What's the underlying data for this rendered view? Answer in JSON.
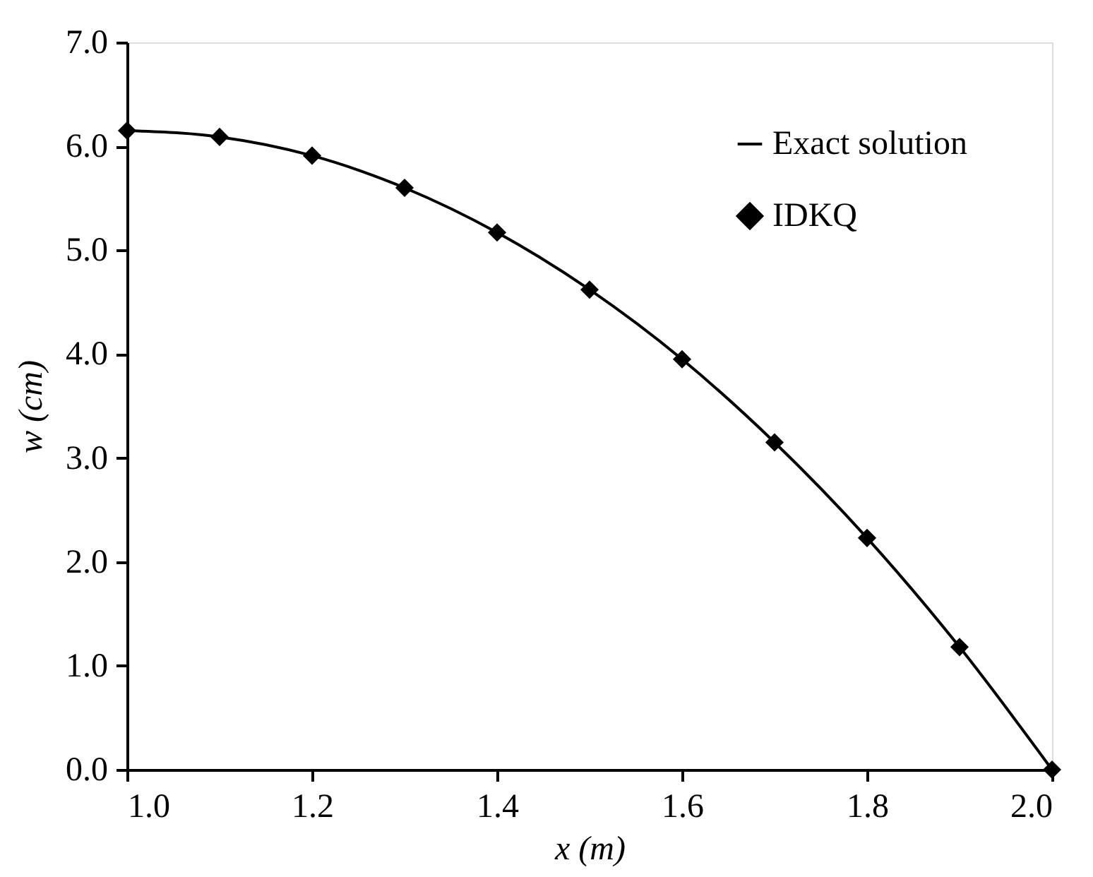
{
  "chart_data": {
    "type": "line",
    "xlabel": "x (m)",
    "ylabel": "w (cm)",
    "xlim": [
      1.0,
      2.0
    ],
    "xticks": [
      {
        "value": 1.0,
        "label": "1.0"
      },
      1.2,
      1.4,
      1.6,
      1.8,
      {
        "value": 2.0,
        "label": "2.0"
      }
    ],
    "ylim": [
      0,
      7
    ],
    "yticks": [
      {
        "value": 0,
        "label": "0.0"
      },
      {
        "value": 1,
        "label": "1.0"
      },
      {
        "value": 2,
        "label": "2.0"
      },
      {
        "value": 3,
        "label": "3.0"
      },
      {
        "value": 4,
        "label": "4.0"
      },
      {
        "value": 5,
        "label": "5.0"
      },
      {
        "value": 6,
        "label": "6.0"
      },
      {
        "value": 7,
        "label": "7.0"
      }
    ],
    "grid": false,
    "legend": "top right",
    "series": [
      {
        "name": "Exact solution",
        "color": "#000000",
        "marker": "none",
        "line_style": "solid",
        "x": [
          1.0,
          1.1,
          1.2,
          1.3,
          1.4,
          1.5,
          1.6,
          1.7,
          1.8,
          1.9,
          2.0
        ],
        "values": [
          6.15,
          6.09,
          5.91,
          5.6,
          5.17,
          4.62,
          3.95,
          3.15,
          2.23,
          1.18,
          0
        ]
      },
      {
        "name": "IDKQ",
        "type": "scatter",
        "color": "#000000",
        "marker": "diamond",
        "x": [
          1.0,
          1.1,
          1.2,
          1.3,
          1.4,
          1.5,
          1.6,
          1.7,
          1.8,
          1.9,
          2.0
        ],
        "values": [
          6.15,
          6.09,
          5.91,
          5.6,
          5.17,
          4.62,
          3.95,
          3.15,
          2.23,
          1.18,
          0
        ]
      }
    ]
  }
}
